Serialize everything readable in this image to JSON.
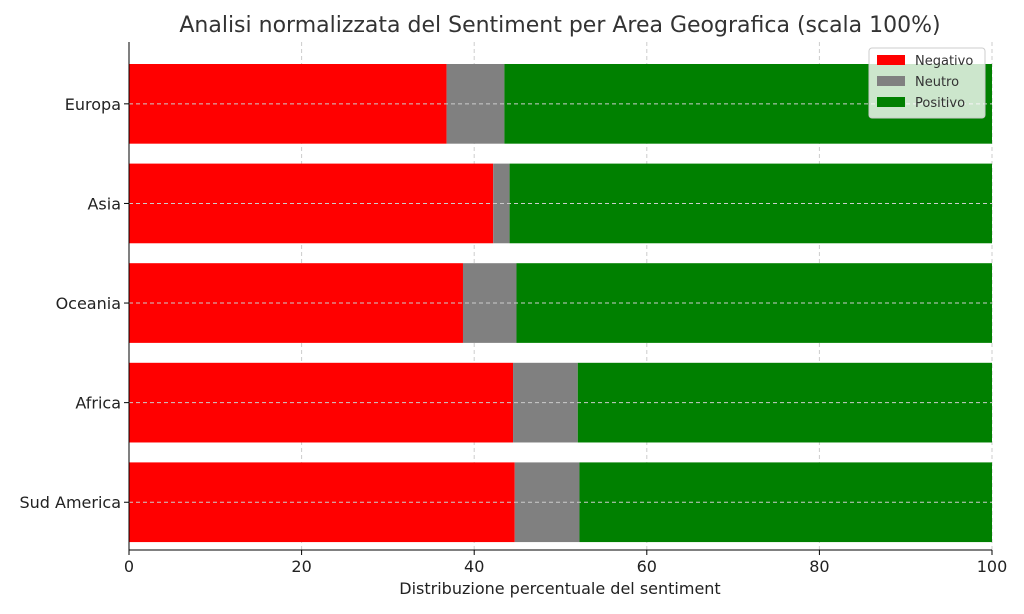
{
  "chart_data": {
    "type": "bar",
    "orientation": "horizontal",
    "stacked": true,
    "title": "Analisi normalizzata del Sentiment per Area Geografica (scala 100%)",
    "xlabel": "Distribuzione percentuale del sentiment",
    "ylabel": "",
    "xlim": [
      0,
      100
    ],
    "xticks": [
      0,
      20,
      40,
      60,
      80,
      100
    ],
    "grid": true,
    "legend_position": "top-right",
    "categories": [
      "Europa",
      "Asia",
      "Oceania",
      "Africa",
      "Sud America"
    ],
    "series": [
      {
        "name": "Negativo",
        "color": "#ff0000",
        "values": [
          36.8,
          42.2,
          38.7,
          44.5,
          44.7
        ]
      },
      {
        "name": "Neutro",
        "color": "#808080",
        "values": [
          6.7,
          1.9,
          6.2,
          7.5,
          7.5
        ]
      },
      {
        "name": "Positivo",
        "color": "#008000",
        "values": [
          56.5,
          55.9,
          55.1,
          48.0,
          47.8
        ]
      }
    ]
  }
}
